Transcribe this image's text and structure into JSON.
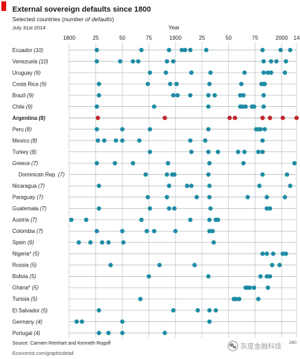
{
  "colors": {
    "dot": "#1f8ca5",
    "highlight": "#c1272d",
    "tag": "#e3120b",
    "watermark": "#8c8c8c"
  },
  "watermark": {
    "icon": "wechat-icon",
    "text": "灰度金融科技"
  },
  "footer": {
    "source": "Source: Carmen Reinhart and Kenneth Rogoff",
    "site": "Economist.com/graphicdetail",
    "corner_number": "260"
  },
  "chart_data": {
    "type": "scatter",
    "title": "External sovereign defaults since 1800",
    "subtitle": "Selected countries (number of defaults)",
    "subtitle_italic": "number of defaults",
    "date": "July 31st 2014",
    "xlabel": "Year",
    "ylabel": "",
    "xlim": [
      1800,
      2014
    ],
    "x_ticks": [
      1800,
      1825,
      1850,
      1875,
      1900,
      1925,
      1950,
      1975,
      2000,
      2014
    ],
    "x_tick_labels": [
      "1800",
      "25",
      "50",
      "75",
      "1900",
      "25",
      "50",
      "75",
      "2000",
      "14"
    ],
    "grid": true,
    "legend": "none",
    "series": [
      {
        "name": "Ecuador",
        "defaults": 10,
        "x": [
          1826,
          1868,
          1894,
          1906,
          1909,
          1914,
          1929,
          1982,
          1999,
          2008
        ]
      },
      {
        "name": "Venezuela",
        "defaults": 10,
        "x": [
          1826,
          1848,
          1860,
          1865,
          1892,
          1898,
          1983,
          1990,
          1995,
          2004
        ]
      },
      {
        "name": "Uruguay",
        "defaults": 9,
        "x": [
          1876,
          1891,
          1915,
          1933,
          1965,
          1983,
          1987,
          1990,
          2003
        ]
      },
      {
        "name": "Costa Rica",
        "defaults": 9,
        "x": [
          1828,
          1874,
          1895,
          1901,
          1932,
          1962,
          1981,
          1983,
          1984
        ]
      },
      {
        "name": "Brazil",
        "defaults": 9,
        "x": [
          1828,
          1898,
          1902,
          1914,
          1931,
          1937,
          1961,
          1964,
          1983
        ]
      },
      {
        "name": "Chile",
        "defaults": 9,
        "x": [
          1826,
          1880,
          1931,
          1961,
          1963,
          1966,
          1972,
          1974,
          1983
        ]
      },
      {
        "name": "Argentina",
        "defaults": 8,
        "highlight": true,
        "x": [
          1827,
          1890,
          1951,
          1956,
          1982,
          1989,
          2001,
          2014
        ]
      },
      {
        "name": "Peru",
        "defaults": 8,
        "x": [
          1826,
          1850,
          1876,
          1931,
          1976,
          1978,
          1980,
          1984
        ]
      },
      {
        "name": "Mexico",
        "defaults": 8,
        "x": [
          1827,
          1833,
          1844,
          1850,
          1866,
          1914,
          1928,
          1982
        ]
      },
      {
        "name": "Turkey",
        "defaults": 8,
        "x": [
          1876,
          1915,
          1931,
          1940,
          1959,
          1965,
          1978,
          1982
        ]
      },
      {
        "name": "Greece",
        "defaults": 7,
        "x": [
          1826,
          1843,
          1860,
          1893,
          1932,
          1964,
          2012
        ]
      },
      {
        "name": "Dominican Rep.",
        "defaults": 7,
        "x": [
          1872,
          1892,
          1897,
          1899,
          1931,
          1982,
          2005
        ]
      },
      {
        "name": "Nicaragua",
        "defaults": 7,
        "x": [
          1828,
          1894,
          1911,
          1915,
          1932,
          1979,
          2008
        ]
      },
      {
        "name": "Paraguay",
        "defaults": 7,
        "x": [
          1874,
          1892,
          1920,
          1932,
          1968,
          1986,
          2003
        ]
      },
      {
        "name": "Guatemala",
        "defaults": 7,
        "x": [
          1828,
          1876,
          1894,
          1899,
          1933,
          1986,
          1989
        ]
      },
      {
        "name": "Austria",
        "defaults": 7,
        "x": [
          1802,
          1816,
          1868,
          1914,
          1932,
          1938,
          1940
        ]
      },
      {
        "name": "Colombia",
        "defaults": 7,
        "x": [
          1826,
          1850,
          1873,
          1880,
          1900,
          1932,
          1935
        ]
      },
      {
        "name": "Spain",
        "defaults": 6,
        "x": [
          1809,
          1820,
          1831,
          1837,
          1851,
          1936
        ]
      },
      {
        "name": "Nigeria*",
        "defaults": 5,
        "x": [
          1982,
          1986,
          1992,
          2001,
          2004
        ]
      },
      {
        "name": "Russia",
        "defaults": 5,
        "x": [
          1839,
          1885,
          1918,
          1991,
          1998
        ]
      },
      {
        "name": "Bolivia",
        "defaults": 5,
        "x": [
          1875,
          1931,
          1980,
          1986,
          1989
        ]
      },
      {
        "name": "Ghana*",
        "defaults": 5,
        "x": [
          1966,
          1968,
          1970,
          1974,
          1987
        ]
      },
      {
        "name": "Tunisia",
        "defaults": 5,
        "x": [
          1867,
          1955,
          1957,
          1960,
          1978
        ]
      },
      {
        "name": "El Salvador",
        "defaults": 5,
        "x": [
          1828,
          1898,
          1921,
          1932,
          1938
        ]
      },
      {
        "name": "Germany",
        "defaults": 4,
        "x": [
          1807,
          1812,
          1850,
          1932
        ]
      },
      {
        "name": "Portugal",
        "defaults": 4,
        "x": [
          1828,
          1837,
          1850,
          1890
        ]
      }
    ]
  }
}
